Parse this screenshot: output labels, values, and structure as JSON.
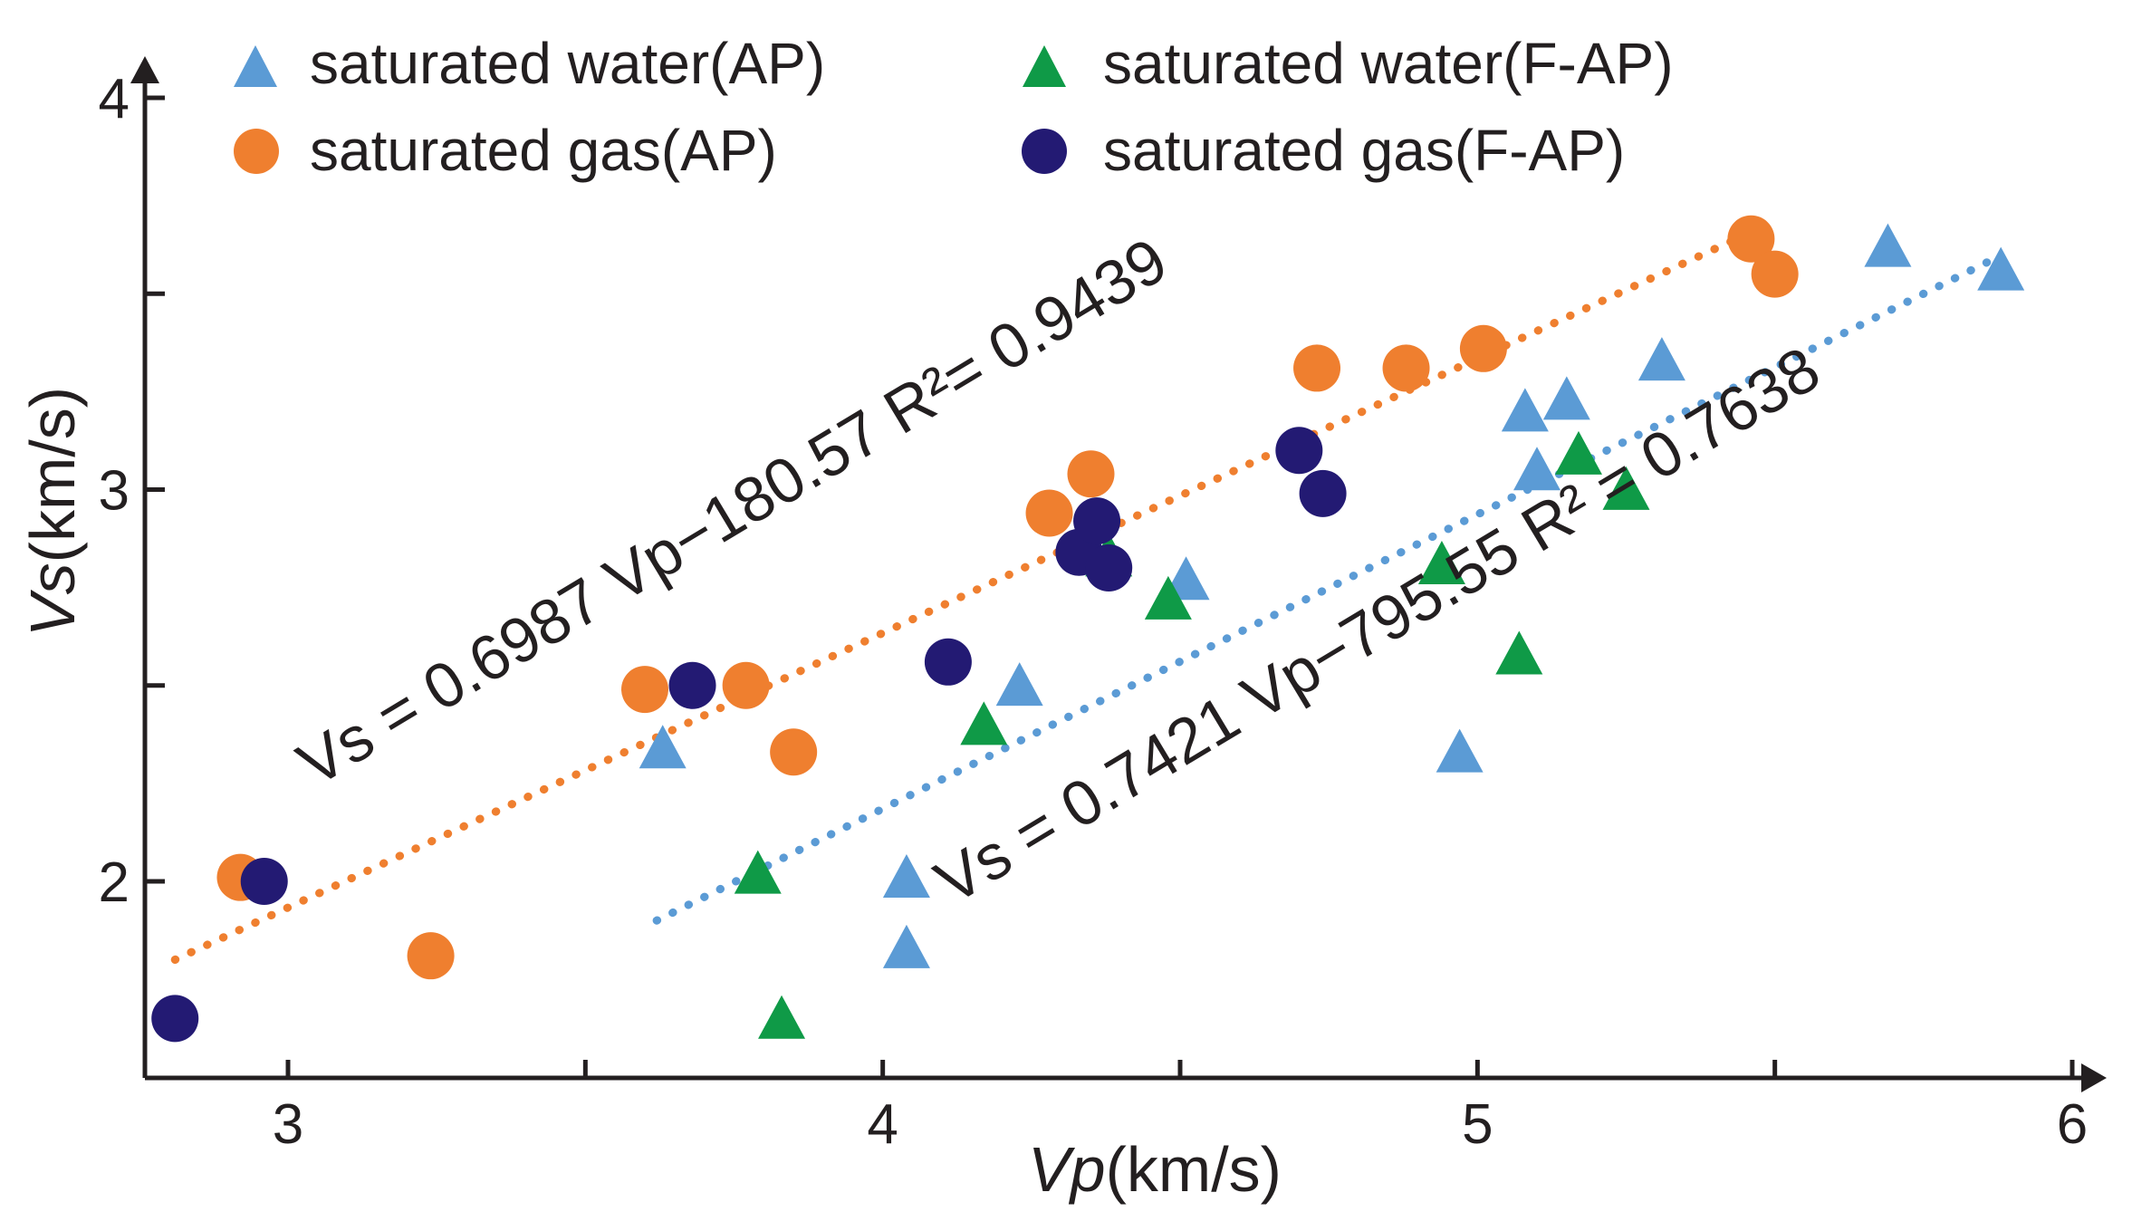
{
  "chart_data": {
    "type": "scatter",
    "title": "",
    "xlabel": {
      "var": "Vp",
      "unit": "(km/s)"
    },
    "ylabel": {
      "var": "Vs",
      "unit": "(km/s)"
    },
    "xlim": [
      2.78,
      6.0
    ],
    "ylim": [
      1.5,
      4.1
    ],
    "xticks": [
      3,
      4,
      5,
      6
    ],
    "xticks_minor": [
      3.5,
      4.5,
      5.5
    ],
    "yticks": [
      2,
      3,
      4
    ],
    "yticks_minor": [
      2.5,
      3.5
    ],
    "grid": false,
    "legend_position": "top",
    "series": [
      {
        "name": "saturated water(AP)",
        "marker": "triangle",
        "color": "#5b9bd5",
        "points": [
          [
            3.63,
            2.33
          ],
          [
            4.04,
            2.0
          ],
          [
            4.04,
            1.82
          ],
          [
            4.23,
            2.49
          ],
          [
            4.51,
            2.76
          ],
          [
            4.97,
            2.32
          ],
          [
            5.08,
            3.19
          ],
          [
            5.1,
            3.04
          ],
          [
            5.15,
            3.22
          ],
          [
            5.31,
            3.32
          ],
          [
            5.69,
            3.61
          ],
          [
            5.88,
            3.55
          ]
        ]
      },
      {
        "name": "saturated water(F-AP)",
        "marker": "triangle",
        "color": "#0f9a47",
        "points": [
          [
            3.79,
            2.01
          ],
          [
            3.83,
            1.64
          ],
          [
            4.17,
            2.39
          ],
          [
            4.38,
            2.82
          ],
          [
            4.48,
            2.71
          ],
          [
            4.94,
            2.8
          ],
          [
            5.07,
            2.57
          ],
          [
            5.17,
            3.08
          ],
          [
            5.25,
            2.99
          ]
        ]
      },
      {
        "name": "saturated gas(AP)",
        "marker": "circle",
        "color": "#ef7f2f",
        "points": [
          [
            2.92,
            2.01
          ],
          [
            3.24,
            1.81
          ],
          [
            3.6,
            2.49
          ],
          [
            3.77,
            2.5
          ],
          [
            3.85,
            2.33
          ],
          [
            4.28,
            2.94
          ],
          [
            4.35,
            3.04
          ],
          [
            4.73,
            3.31
          ],
          [
            4.88,
            3.31
          ],
          [
            5.01,
            3.36
          ],
          [
            5.46,
            3.64
          ],
          [
            5.5,
            3.55
          ]
        ]
      },
      {
        "name": "saturated gas(F-AP)",
        "marker": "circle",
        "color": "#231a73",
        "points": [
          [
            2.81,
            1.65
          ],
          [
            2.96,
            2.0
          ],
          [
            3.68,
            2.5
          ],
          [
            4.11,
            2.56
          ],
          [
            4.33,
            2.84
          ],
          [
            4.36,
            2.92
          ],
          [
            4.38,
            2.8
          ],
          [
            4.7,
            3.1
          ],
          [
            4.74,
            2.99
          ]
        ]
      }
    ],
    "trendlines": [
      {
        "series": "saturated gas(AP)",
        "color": "#ef7f2f",
        "style": "dotted",
        "x_range": [
          2.81,
          5.45
        ],
        "y_range": [
          1.8,
          3.65
        ],
        "equation": "Vs = 0.6987 Vp−180.57  R²= 0.9439"
      },
      {
        "series": "saturated water(AP)",
        "color": "#5b9bd5",
        "style": "dotted",
        "x_range": [
          3.62,
          5.87
        ],
        "y_range": [
          1.9,
          3.59
        ],
        "equation": "Vs = 0.7421 Vp−795.55 R² = 0.7638"
      }
    ]
  }
}
